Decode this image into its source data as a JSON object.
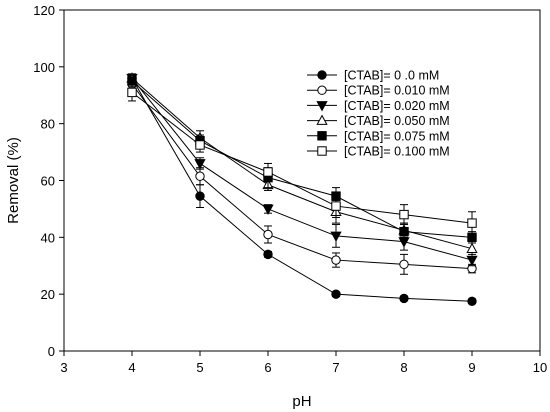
{
  "chart_data": {
    "type": "line",
    "xlabel": "pH",
    "ylabel": "Removal (%)",
    "xlim": [
      3,
      10
    ],
    "ylim": [
      0,
      120
    ],
    "xticks": [
      3,
      4,
      5,
      6,
      7,
      8,
      9,
      10
    ],
    "yticks": [
      0,
      20,
      40,
      60,
      80,
      100,
      120
    ],
    "grid": false,
    "legend_position": "top-right",
    "x": [
      4,
      5,
      6,
      7,
      8,
      9
    ],
    "series": [
      {
        "name": "[CTAB]= 0 .0 mM",
        "marker": "circle",
        "fill": "#000000",
        "values": [
          96,
          54.5,
          34,
          20,
          18.5,
          17.5
        ],
        "errors": [
          1.5,
          4,
          1,
          0.8,
          0.8,
          0.8
        ]
      },
      {
        "name": "[CTAB]= 0.010 mM",
        "marker": "circle",
        "fill": "#ffffff",
        "values": [
          94,
          61.5,
          41,
          32,
          30.5,
          29
        ],
        "errors": [
          2.5,
          3,
          3,
          2.5,
          3.5,
          1.5
        ]
      },
      {
        "name": "[CTAB]= 0.020 mM",
        "marker": "triangle-down",
        "fill": "#000000",
        "values": [
          96,
          66,
          50,
          40.5,
          38.5,
          32
        ],
        "errors": [
          1.5,
          2,
          1.5,
          4,
          3,
          2
        ]
      },
      {
        "name": "[CTAB]= 0.050 mM",
        "marker": "triangle-up",
        "fill": "#ffffff",
        "values": [
          96,
          75,
          58.5,
          49,
          42.5,
          36
        ],
        "errors": [
          1.5,
          2.5,
          2,
          4,
          2.5,
          3
        ]
      },
      {
        "name": "[CTAB]= 0.075 mM",
        "marker": "square",
        "fill": "#000000",
        "values": [
          95,
          74,
          61,
          54.5,
          42,
          40
        ],
        "errors": [
          2,
          2,
          3.5,
          3,
          3,
          2
        ]
      },
      {
        "name": "[CTAB]= 0.100 mM",
        "marker": "square",
        "fill": "#ffffff",
        "values": [
          91,
          72.5,
          63,
          51,
          48,
          45
        ],
        "errors": [
          3,
          2.5,
          3,
          4,
          3.5,
          4
        ]
      }
    ]
  }
}
